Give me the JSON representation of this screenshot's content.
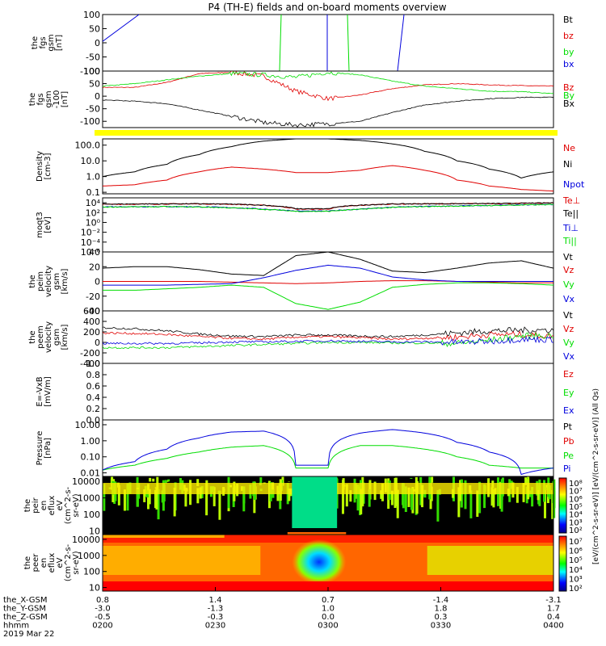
{
  "title": "P4 (TH-E) fields and on-board moments overview",
  "colors": {
    "black": "#000000",
    "red": "#e00000",
    "green": "#00dd00",
    "blue": "#0000dd",
    "yellow": "#ffff00"
  },
  "chart_data": [
    {
      "type": "line",
      "panel": "fgs",
      "ylabel_lines": [
        "the",
        "fgs",
        "gsm",
        "[nT]"
      ],
      "ylim": [
        -100,
        100
      ],
      "yticks": [
        "100",
        "50",
        "0",
        "-50",
        "-100"
      ],
      "series": [
        {
          "name": "Bt",
          "color": "black"
        },
        {
          "name": "bz",
          "color": "red"
        },
        {
          "name": "by",
          "color": "green"
        },
        {
          "name": "bx",
          "color": "blue"
        }
      ],
      "approx_values": {
        "bx_start": 5,
        "bx_crossing_hour": "0200-0205"
      }
    },
    {
      "type": "line",
      "panel": "fgs_dsl",
      "ylabel_lines": [
        "the",
        "fgs",
        "gsm",
        "-100",
        "[nT]"
      ],
      "ylim": [
        -125,
        100
      ],
      "yticks": [
        "100",
        "50",
        "0",
        "-50",
        "-100"
      ],
      "series": [
        {
          "name": "Bz",
          "color": "red",
          "values": [
            35,
            35,
            55,
            90,
            95,
            80,
            20,
            -10,
            5,
            30,
            45,
            50,
            45,
            42,
            40
          ]
        },
        {
          "name": "By",
          "color": "green",
          "values": [
            40,
            50,
            65,
            80,
            90,
            85,
            75,
            95,
            85,
            60,
            40,
            30,
            20,
            18,
            10
          ]
        },
        {
          "name": "Bx",
          "color": "black",
          "values": [
            -15,
            -20,
            -30,
            -55,
            -80,
            -105,
            -115,
            -110,
            -100,
            -65,
            -35,
            -20,
            -10,
            -5,
            -4
          ]
        }
      ]
    },
    {
      "type": "line",
      "panel": "density",
      "ylabel_lines": [
        "Density",
        "[cm-3]"
      ],
      "yscale": "log",
      "ylim": [
        0.08,
        250
      ],
      "yticks": [
        "100.0",
        "10.0",
        "1.0",
        "0.1"
      ],
      "series": [
        {
          "name": "Ne",
          "color": "red",
          "values": [
            0.25,
            0.3,
            0.6,
            2.0,
            4.0,
            3.0,
            1.8,
            1.8,
            2.5,
            5.0,
            2.5,
            0.6,
            0.25,
            0.15,
            0.12
          ]
        },
        {
          "name": "Ni",
          "color": "black",
          "values": [
            1.0,
            2.0,
            6.0,
            25,
            80,
            180,
            250,
            250,
            200,
            120,
            40,
            10,
            3,
            0.8,
            2.0
          ]
        },
        {
          "name": "Npot",
          "color": "blue",
          "values": []
        }
      ]
    },
    {
      "type": "line",
      "panel": "temperature",
      "ylabel_lines": [
        "moqt3",
        "[eV]"
      ],
      "yscale": "log",
      "ylim": [
        1e-06,
        100000.0
      ],
      "yticks": [
        "10⁴",
        "10²",
        "10⁰",
        "10⁻²",
        "10⁻⁴",
        "10⁻⁶"
      ],
      "series": [
        {
          "name": "Te⊥",
          "color": "red",
          "values": [
            5000,
            5200,
            5800,
            6000,
            5000,
            3000,
            500,
            500,
            3000,
            5500,
            6000,
            6200,
            6800,
            7500,
            9000
          ]
        },
        {
          "name": "Te||",
          "color": "black",
          "values": [
            5500,
            5600,
            6000,
            6200,
            5200,
            3200,
            600,
            600,
            3200,
            5800,
            6200,
            6500,
            7000,
            7800,
            9500
          ]
        },
        {
          "name": "Ti⊥",
          "color": "blue",
          "values": [
            1500,
            1600,
            1700,
            1500,
            1000,
            500,
            200,
            200,
            500,
            1200,
            1800,
            2200,
            2800,
            3500,
            4500
          ]
        },
        {
          "name": "Ti||",
          "color": "green",
          "values": [
            1400,
            1500,
            1600,
            1400,
            900,
            450,
            180,
            180,
            450,
            1100,
            1700,
            2100,
            2700,
            3400,
            4300
          ]
        }
      ]
    },
    {
      "type": "line",
      "panel": "velocity_gsm_low",
      "ylabel_lines": [
        "the",
        "peim",
        "velocity",
        "gsm",
        "[km/s]"
      ],
      "ylim": [
        -40,
        40
      ],
      "yticks": [
        "40",
        "20",
        "0",
        "-20",
        "-40"
      ],
      "series": [
        {
          "name": "Vt",
          "color": "black",
          "values": [
            18,
            20,
            20,
            16,
            10,
            8,
            35,
            40,
            30,
            14,
            12,
            18,
            25,
            28,
            18
          ]
        },
        {
          "name": "Vz",
          "color": "red",
          "values": [
            0,
            0,
            0,
            0,
            -1,
            -2,
            -3,
            -2,
            0,
            1,
            1,
            0,
            -1,
            -2,
            -2
          ]
        },
        {
          "name": "Vy",
          "color": "green",
          "values": [
            -12,
            -12,
            -10,
            -8,
            -5,
            -8,
            -30,
            -38,
            -28,
            -8,
            -4,
            -2,
            -2,
            -3,
            -5
          ]
        },
        {
          "name": "Vx",
          "color": "blue",
          "values": [
            -5,
            -5,
            -5,
            -4,
            -3,
            5,
            15,
            22,
            18,
            6,
            2,
            0,
            0,
            0,
            0
          ]
        }
      ]
    },
    {
      "type": "line",
      "panel": "velocity_gsm_high",
      "ylabel_lines": [
        "the",
        "peem",
        "velocity",
        "gsm",
        "[km/s]"
      ],
      "ylim": [
        -400,
        600
      ],
      "yticks": [
        "600",
        "400",
        "200",
        "0",
        "-200",
        "-400"
      ],
      "series": [
        {
          "name": "Vt",
          "color": "black",
          "values": [
            280,
            260,
            220,
            160,
            120,
            110,
            140,
            140,
            120,
            110,
            140,
            180,
            220,
            230,
            240
          ]
        },
        {
          "name": "Vz",
          "color": "red",
          "values": [
            180,
            170,
            150,
            110,
            80,
            60,
            100,
            110,
            90,
            60,
            80,
            100,
            150,
            150,
            120
          ]
        },
        {
          "name": "Vy",
          "color": "green",
          "values": [
            -100,
            -100,
            -100,
            -80,
            -60,
            -40,
            -20,
            0,
            0,
            -10,
            -10,
            -20,
            40,
            120,
            130
          ]
        },
        {
          "name": "Vx",
          "color": "blue",
          "values": [
            -20,
            -20,
            -20,
            -10,
            10,
            10,
            20,
            30,
            20,
            10,
            10,
            0,
            20,
            60,
            50
          ]
        }
      ]
    },
    {
      "type": "line",
      "panel": "efield",
      "ylabel_lines": [
        "E=-VxB",
        "[mV/m]"
      ],
      "ylim": [
        0,
        1
      ],
      "yticks": [
        "1.0",
        "0.8",
        "0.6",
        "0.4",
        "0.2",
        "0.0"
      ],
      "series": [
        {
          "name": "Ez",
          "color": "red",
          "values": []
        },
        {
          "name": "Ey",
          "color": "green",
          "values": []
        },
        {
          "name": "Ex",
          "color": "blue",
          "values": []
        }
      ]
    },
    {
      "type": "line",
      "panel": "pressure",
      "ylabel_lines": [
        "Pressure",
        "[nPa]"
      ],
      "yscale": "log",
      "ylim": [
        0.006,
        20
      ],
      "yticks": [
        "10.00",
        "1.00",
        "0.10",
        "0.01"
      ],
      "series": [
        {
          "name": "Pt",
          "color": "black",
          "values": []
        },
        {
          "name": "Pb",
          "color": "red",
          "values": []
        },
        {
          "name": "Pe",
          "color": "green",
          "values": [
            0.015,
            0.03,
            0.08,
            0.2,
            0.4,
            0.5,
            0.02,
            0.02,
            0.5,
            0.5,
            0.3,
            0.1,
            0.03,
            0.02,
            0.02
          ]
        },
        {
          "name": "Pi",
          "color": "blue",
          "values": [
            0.015,
            0.05,
            0.3,
            1.5,
            3.5,
            4.0,
            0.03,
            0.03,
            3.0,
            5.0,
            3.0,
            0.8,
            0.2,
            0.008,
            0.02
          ]
        }
      ]
    },
    {
      "type": "heatmap",
      "panel": "peir_spectrogram",
      "ylabel_lines": [
        "the",
        "peir",
        "en",
        "eflux",
        "eV",
        "(cm^2-s-",
        "sr-eV)"
      ],
      "yscale": "log",
      "yticks": [
        "10000",
        "1000",
        "100",
        "10"
      ]
    },
    {
      "type": "heatmap",
      "panel": "peer_spectrogram",
      "ylabel_lines": [
        "the",
        "peer",
        "en",
        "eflux",
        "eV",
        "(cm^2-s-",
        "sr-eV)"
      ],
      "yscale": "log",
      "yticks": [
        "10000",
        "1000",
        "100",
        "10"
      ]
    }
  ],
  "colorbars": [
    {
      "ticks": [
        "10⁸",
        "10⁷",
        "10⁶",
        "10⁵",
        "10⁴",
        "10³",
        "10²"
      ]
    },
    {
      "ticks": [
        "10⁷",
        "10⁶",
        "10⁵",
        "10⁴",
        "10³",
        "10²"
      ]
    }
  ],
  "colorbar_label": "[eV/(cm^2-s-sr-eV)] [eV/(cm^2-s-sr-eV)] (All Qs)",
  "x_axis": {
    "row_labels": [
      "the_X-GSM",
      "the_Y-GSM",
      "the_Z-GSM",
      "hhmm",
      "2019 Mar 22"
    ],
    "columns": [
      [
        "0.8",
        "-3.0",
        "-0.5",
        "0200"
      ],
      [
        "1.4",
        "-1.3",
        "-0.3",
        "0230"
      ],
      [
        "0.7",
        "1.0",
        "0.0",
        "0300"
      ],
      [
        "-1.4",
        "1.8",
        "0.3",
        "0330"
      ],
      [
        "-3.1",
        "1.7",
        "0.4",
        "0400"
      ]
    ]
  }
}
